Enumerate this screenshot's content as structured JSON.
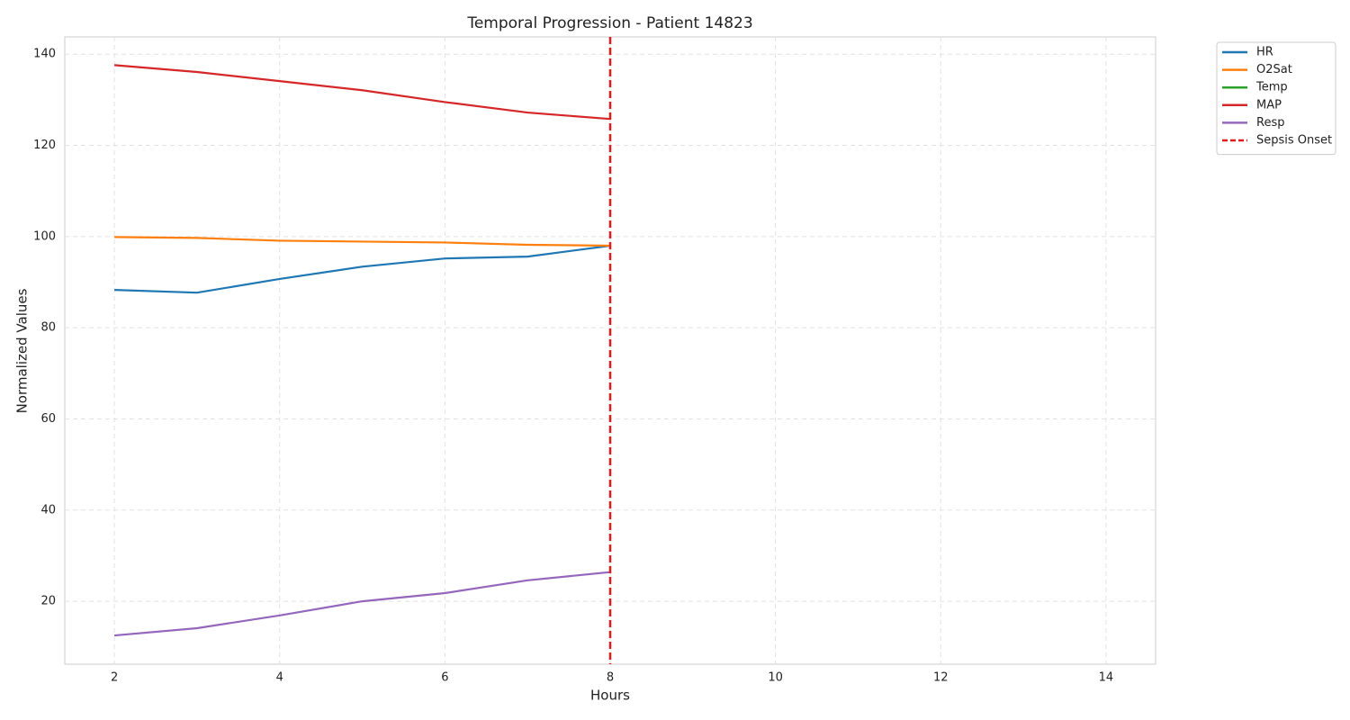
{
  "chart_data": {
    "type": "line",
    "title": "Temporal Progression - Patient 14823",
    "xlabel": "Hours",
    "ylabel": "Normalized Values",
    "x": [
      2,
      3,
      4,
      5,
      6,
      7,
      8
    ],
    "series": [
      {
        "name": "HR",
        "color": "#1f77b4",
        "values": [
          88.3,
          87.7,
          90.7,
          93.4,
          95.2,
          95.6,
          98.0
        ]
      },
      {
        "name": "O2Sat",
        "color": "#ff7f0e",
        "values": [
          99.9,
          99.7,
          99.1,
          98.9,
          98.7,
          98.2,
          98.0
        ]
      },
      {
        "name": "Temp",
        "color": "#2ca02c",
        "values": [
          null,
          null,
          null,
          null,
          null,
          null,
          null
        ]
      },
      {
        "name": "MAP",
        "color": "#d62728",
        "values": [
          137.6,
          136.1,
          134.1,
          132.1,
          129.5,
          127.2,
          125.8
        ]
      },
      {
        "name": "Resp",
        "color": "#9467bd",
        "values": [
          12.5,
          14.1,
          16.9,
          20.0,
          21.8,
          24.6,
          26.4
        ]
      }
    ],
    "vlines": [
      {
        "name": "Sepsis Onset",
        "x": 8,
        "color": "#e31a1c"
      }
    ],
    "xlim": [
      1.4,
      14.6
    ],
    "ylim": [
      6.2,
      143.8
    ],
    "xticks": [
      2,
      4,
      6,
      8,
      10,
      12,
      14
    ],
    "yticks": [
      20,
      40,
      60,
      80,
      100,
      120,
      140
    ],
    "grid": true,
    "legend": "outside upper right"
  }
}
